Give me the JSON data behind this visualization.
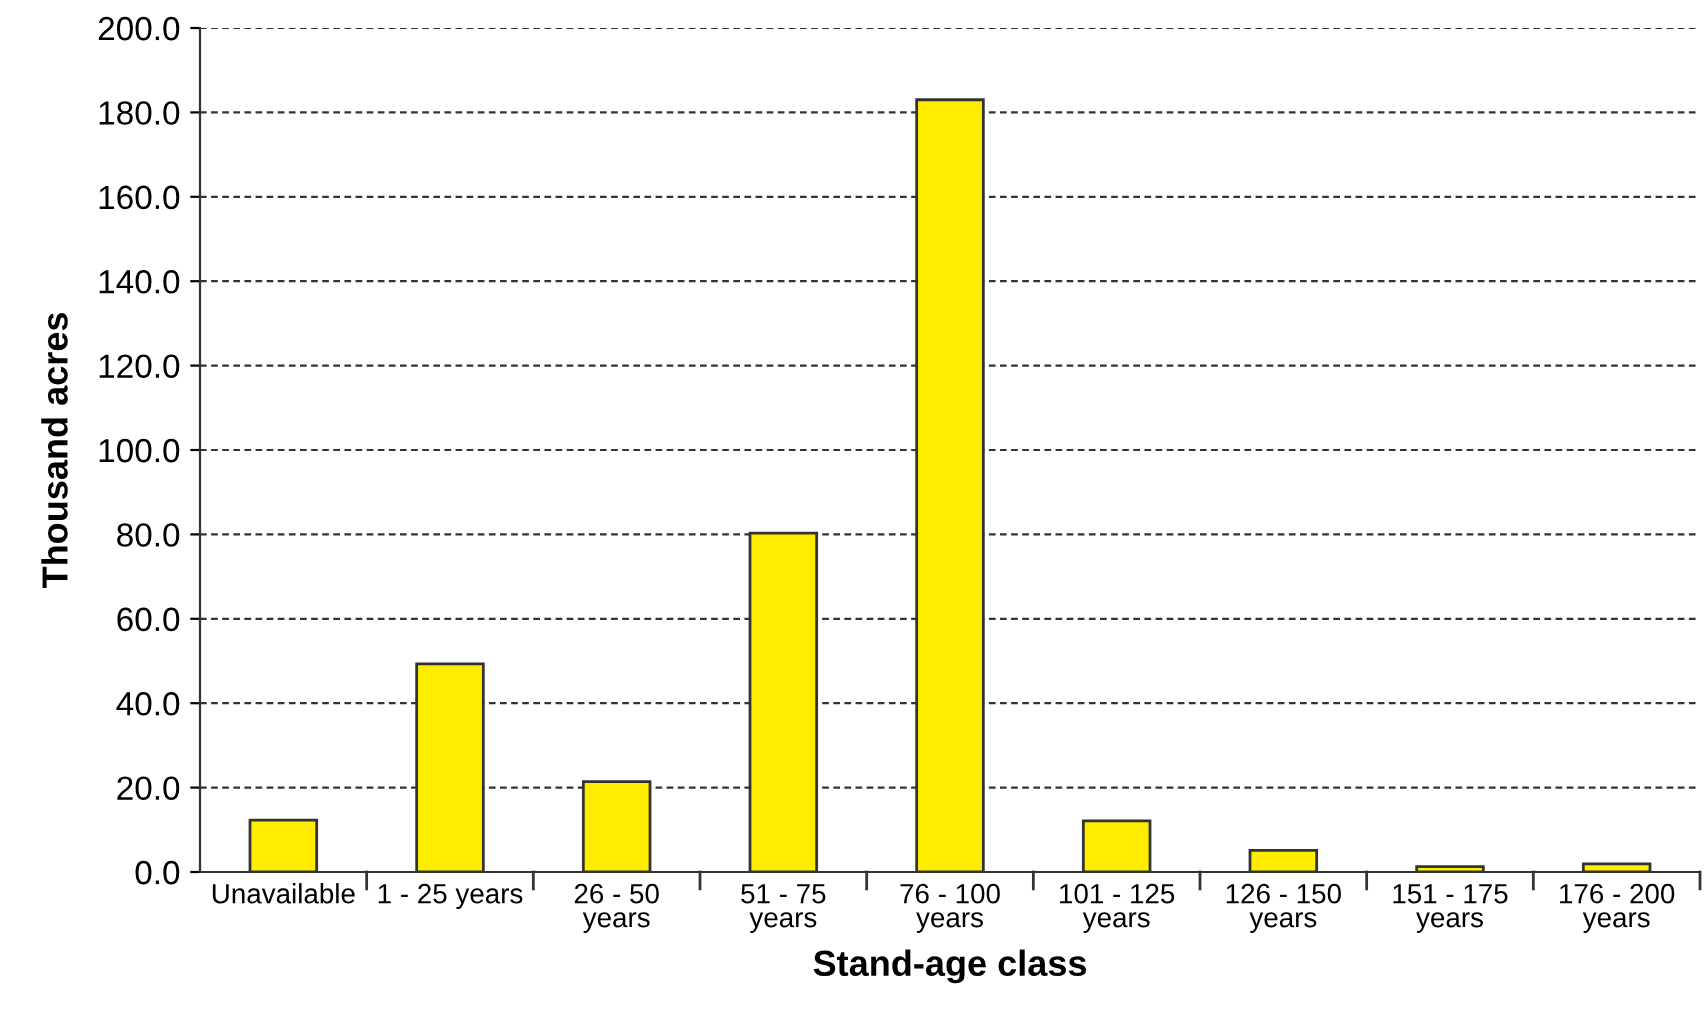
{
  "chart_data": {
    "type": "bar",
    "xlabel": "Stand-age class",
    "ylabel": "Thousand acres",
    "categories": [
      "Unavailable",
      "1 - 25 years",
      "26 - 50 years",
      "51 - 75 years",
      "76 - 100 years",
      "101 - 125 years",
      "126 - 150 years",
      "151 - 175 years",
      "176 - 200 years"
    ],
    "values": [
      12.3,
      49.3,
      21.4,
      80.3,
      183.0,
      12.1,
      5.1,
      1.3,
      1.9
    ],
    "color": "#ffed00",
    "ylim": [
      0,
      200
    ],
    "yticks": [
      {
        "value": 0,
        "label": "0.0"
      },
      {
        "value": 20,
        "label": "20.0"
      },
      {
        "value": 40,
        "label": "40.0"
      },
      {
        "value": 60,
        "label": "60.0"
      },
      {
        "value": 80,
        "label": "80.0"
      },
      {
        "value": 100,
        "label": "100.0"
      },
      {
        "value": 120,
        "label": "120.0"
      },
      {
        "value": 140,
        "label": "140.0"
      },
      {
        "value": 160,
        "label": "160.0"
      },
      {
        "value": 180,
        "label": "180.0"
      },
      {
        "value": 200,
        "label": "200.0"
      }
    ],
    "grid": "y"
  }
}
